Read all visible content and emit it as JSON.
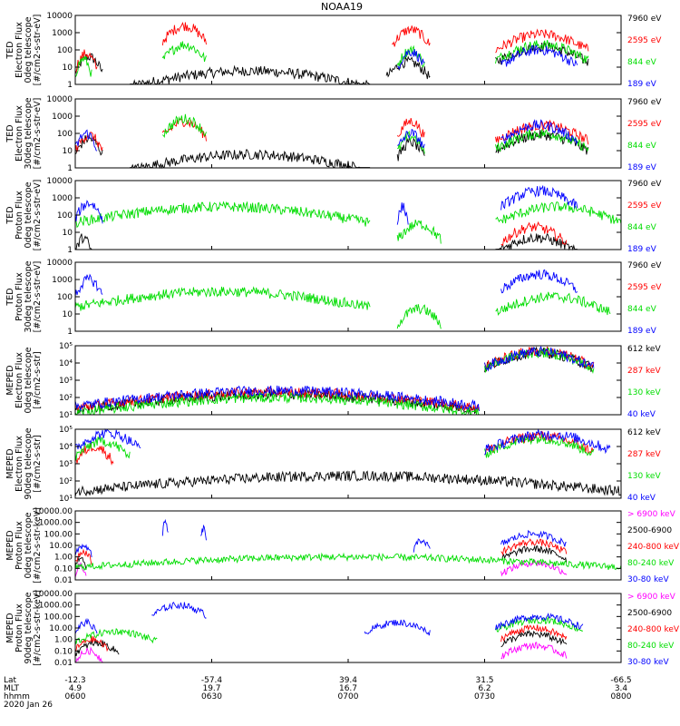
{
  "title": "NOAA19",
  "colors": {
    "black": "#000000",
    "red": "#ff0000",
    "green": "#00dd00",
    "blue": "#0000ff",
    "magenta": "#ff00ff"
  },
  "panels": [
    {
      "ylabel": [
        "TED",
        "Electron Flux",
        "0deg telescope",
        "[#/cm2-s-str-eV]"
      ],
      "yticks": [
        "10000",
        "1000",
        "100",
        "10",
        "1"
      ],
      "legend": [
        {
          "text": "7960 eV",
          "color": "black"
        },
        {
          "text": "2595 eV",
          "color": "red"
        },
        {
          "text": "844 eV",
          "color": "green"
        },
        {
          "text": "189 eV",
          "color": "blue"
        }
      ]
    },
    {
      "ylabel": [
        "TED",
        "Electron Flux",
        "30deg telescope",
        "[#/cm2-s-str-eV]"
      ],
      "yticks": [
        "10000",
        "1000",
        "100",
        "10",
        "1"
      ],
      "legend": [
        {
          "text": "7960 eV",
          "color": "black"
        },
        {
          "text": "2595 eV",
          "color": "red"
        },
        {
          "text": "844 eV",
          "color": "green"
        },
        {
          "text": "189 eV",
          "color": "blue"
        }
      ]
    },
    {
      "ylabel": [
        "TED",
        "Proton Flux",
        "0deg telescope",
        "[#/cm2-s-str-eV]"
      ],
      "yticks": [
        "10000",
        "1000",
        "100",
        "10",
        "1"
      ],
      "legend": [
        {
          "text": "7960 eV",
          "color": "black"
        },
        {
          "text": "2595 eV",
          "color": "red"
        },
        {
          "text": "844 eV",
          "color": "green"
        },
        {
          "text": "189 eV",
          "color": "blue"
        }
      ]
    },
    {
      "ylabel": [
        "TED",
        "Proton Flux",
        "30deg telescope",
        "[#/cm2-s-str-eV]"
      ],
      "yticks": [
        "10000",
        "1000",
        "100",
        "10",
        "1"
      ],
      "legend": [
        {
          "text": "7960 eV",
          "color": "black"
        },
        {
          "text": "2595 eV",
          "color": "red"
        },
        {
          "text": "844 eV",
          "color": "green"
        },
        {
          "text": "189 eV",
          "color": "blue"
        }
      ]
    },
    {
      "ylabel": [
        "MEPED",
        "Electron Flux",
        "0deg telescope",
        "[#/cm2-s-str]"
      ],
      "yticks": [
        "10⁵",
        "10⁴",
        "10³",
        "10²",
        "10¹"
      ],
      "legend": [
        {
          "text": "612 keV",
          "color": "black"
        },
        {
          "text": "287 keV",
          "color": "red"
        },
        {
          "text": "130 keV",
          "color": "green"
        },
        {
          "text": "40 keV",
          "color": "blue"
        }
      ]
    },
    {
      "ylabel": [
        "MEPED",
        "Electron Flux",
        "90deg telescope",
        "[#/cm2-s-str]"
      ],
      "yticks": [
        "10⁵",
        "10⁴",
        "10³",
        "10²",
        "10¹"
      ],
      "legend": [
        {
          "text": "612 keV",
          "color": "black"
        },
        {
          "text": "287 keV",
          "color": "red"
        },
        {
          "text": "130 keV",
          "color": "green"
        },
        {
          "text": "40 keV",
          "color": "blue"
        }
      ]
    },
    {
      "ylabel": [
        "MEPED",
        "Proton Flux",
        "0deg telescope",
        "[#/cm2-s-str-keV]"
      ],
      "yticks": [
        "10000.00",
        "1000.00",
        "100.00",
        "10.00",
        "1.00",
        "0.10",
        "0.01"
      ],
      "legend": [
        {
          "text": "> 6900 keV",
          "color": "magenta"
        },
        {
          "text": "2500-6900",
          "color": "black"
        },
        {
          "text": "240-800 keV",
          "color": "red"
        },
        {
          "text": "80-240 keV",
          "color": "green"
        },
        {
          "text": "30-80 keV",
          "color": "blue"
        }
      ]
    },
    {
      "ylabel": [
        "MEPED",
        "Proton Flux",
        "90deg telescope",
        "[#/cm2-s-str-keV]"
      ],
      "yticks": [
        "10000.00",
        "1000.00",
        "100.00",
        "10.00",
        "1.00",
        "0.10",
        "0.01"
      ],
      "legend": [
        {
          "text": "> 6900 keV",
          "color": "magenta"
        },
        {
          "text": "2500-6900",
          "color": "black"
        },
        {
          "text": "240-800 keV",
          "color": "red"
        },
        {
          "text": "80-240 keV",
          "color": "green"
        },
        {
          "text": "30-80 keV",
          "color": "blue"
        }
      ]
    }
  ],
  "footer": {
    "row_labels": [
      "Lat",
      "MLT",
      "hhmm"
    ],
    "date": "2020 Jan 26",
    "columns": [
      {
        "lat": "-12.3",
        "mlt": "4.9",
        "hhmm": "0600"
      },
      {
        "lat": "-57.4",
        "mlt": "19.7",
        "hhmm": "0630"
      },
      {
        "lat": "39.4",
        "mlt": "16.7",
        "hhmm": "0700"
      },
      {
        "lat": "31.5",
        "mlt": "6.2",
        "hhmm": "0730"
      },
      {
        "lat": "-66.5",
        "mlt": "3.4",
        "hhmm": "0800"
      }
    ]
  },
  "chart_data": {
    "type": "line",
    "title": "NOAA19",
    "x": [
      "0600",
      "0630",
      "0700",
      "0730",
      "0800"
    ],
    "xlim": [
      "0600",
      "0800"
    ],
    "panels": [
      {
        "ylabel": "TED Electron Flux 0deg telescope [#/cm2-s-str-eV]",
        "yscale": "log",
        "ylim": [
          1,
          10000
        ],
        "series": [
          {
            "name": "7960 eV",
            "color": "black",
            "segments": [
              [
                0.0,
                0.05,
                40
              ],
              [
                0.1,
                0.54,
                6
              ],
              [
                0.57,
                0.65,
                20
              ],
              [
                0.77,
                0.94,
                150
              ]
            ]
          },
          {
            "name": "2595 eV",
            "color": "red",
            "segments": [
              [
                0.0,
                0.04,
                60
              ],
              [
                0.16,
                0.24,
                2500
              ],
              [
                0.58,
                0.65,
                1500
              ],
              [
                0.77,
                0.94,
                800
              ]
            ]
          },
          {
            "name": "844 eV",
            "color": "green",
            "segments": [
              [
                0.0,
                0.03,
                30
              ],
              [
                0.16,
                0.24,
                200
              ],
              [
                0.59,
                0.64,
                100
              ],
              [
                0.77,
                0.94,
                200
              ]
            ]
          },
          {
            "name": "189 eV",
            "color": "blue",
            "segments": [
              [
                0.59,
                0.64,
                80
              ],
              [
                0.78,
                0.92,
                100
              ]
            ]
          }
        ]
      },
      {
        "ylabel": "TED Electron Flux 30deg telescope [#/cm2-s-str-eV]",
        "yscale": "log",
        "ylim": [
          1,
          10000
        ],
        "series": [
          {
            "name": "7960 eV",
            "color": "black",
            "segments": [
              [
                0.0,
                0.05,
                50
              ],
              [
                0.1,
                0.54,
                6
              ],
              [
                0.59,
                0.64,
                30
              ],
              [
                0.77,
                0.94,
                80
              ]
            ]
          },
          {
            "name": "2595 eV",
            "color": "red",
            "segments": [
              [
                0.0,
                0.05,
                80
              ],
              [
                0.16,
                0.24,
                500
              ],
              [
                0.59,
                0.64,
                500
              ],
              [
                0.77,
                0.94,
                300
              ]
            ]
          },
          {
            "name": "844 eV",
            "color": "green",
            "segments": [
              [
                0.16,
                0.24,
                700
              ],
              [
                0.59,
                0.64,
                70
              ],
              [
                0.77,
                0.94,
                100
              ]
            ]
          },
          {
            "name": "189 eV",
            "color": "blue",
            "segments": [
              [
                0.0,
                0.04,
                100
              ],
              [
                0.59,
                0.64,
                100
              ],
              [
                0.78,
                0.92,
                300
              ]
            ]
          }
        ]
      },
      {
        "ylabel": "TED Proton Flux 0deg telescope [#/cm2-s-str-eV]",
        "yscale": "log",
        "ylim": [
          1,
          10000
        ],
        "series": [
          {
            "name": "7960 eV",
            "color": "black",
            "segments": [
              [
                0.0,
                0.03,
                5
              ],
              [
                0.77,
                0.92,
                5
              ]
            ]
          },
          {
            "name": "2595 eV",
            "color": "red",
            "segments": [
              [
                0.78,
                0.9,
                20
              ]
            ]
          },
          {
            "name": "844 eV",
            "color": "green",
            "segments": [
              [
                0.0,
                0.54,
                300
              ],
              [
                0.59,
                0.67,
                30
              ],
              [
                0.77,
                1.0,
                300
              ]
            ]
          },
          {
            "name": "189 eV",
            "color": "blue",
            "segments": [
              [
                0.0,
                0.05,
                500
              ],
              [
                0.59,
                0.61,
                300
              ],
              [
                0.78,
                0.92,
                2500
              ]
            ]
          }
        ]
      },
      {
        "ylabel": "TED Proton Flux 30deg telescope [#/cm2-s-str-eV]",
        "yscale": "log",
        "ylim": [
          1,
          10000
        ],
        "series": [
          {
            "name": "844 eV",
            "color": "green",
            "segments": [
              [
                0.0,
                0.54,
                200
              ],
              [
                0.59,
                0.67,
                20
              ],
              [
                0.77,
                0.98,
                100
              ]
            ]
          },
          {
            "name": "189 eV",
            "color": "blue",
            "segments": [
              [
                0.0,
                0.05,
                1000
              ],
              [
                0.78,
                0.92,
                2000
              ]
            ]
          }
        ]
      },
      {
        "ylabel": "MEPED Electron Flux 0deg telescope [#/cm2-s-str]",
        "yscale": "log",
        "ylim": [
          10,
          100000
        ],
        "series": [
          {
            "name": "612 keV",
            "color": "black",
            "segments": [
              [
                0.0,
                0.74,
                150
              ],
              [
                0.75,
                0.95,
                40000
              ]
            ]
          },
          {
            "name": "287 keV",
            "color": "red",
            "segments": [
              [
                0.0,
                0.74,
                200
              ],
              [
                0.75,
                0.95,
                50000
              ]
            ]
          },
          {
            "name": "130 keV",
            "color": "green",
            "segments": [
              [
                0.0,
                0.74,
                100
              ],
              [
                0.75,
                0.95,
                40000
              ]
            ]
          },
          {
            "name": "40 keV",
            "color": "blue",
            "segments": [
              [
                0.0,
                0.74,
                250
              ],
              [
                0.75,
                0.95,
                45000
              ]
            ]
          }
        ]
      },
      {
        "ylabel": "MEPED Electron Flux 90deg telescope [#/cm2-s-str]",
        "yscale": "log",
        "ylim": [
          10,
          100000
        ],
        "series": [
          {
            "name": "612 keV",
            "color": "black",
            "segments": [
              [
                0.0,
                1.0,
                200
              ]
            ]
          },
          {
            "name": "287 keV",
            "color": "red",
            "segments": [
              [
                0.0,
                0.07,
                10000
              ],
              [
                0.75,
                0.95,
                40000
              ]
            ]
          },
          {
            "name": "130 keV",
            "color": "green",
            "segments": [
              [
                0.0,
                0.1,
                20000
              ],
              [
                0.75,
                0.95,
                30000
              ]
            ]
          },
          {
            "name": "40 keV",
            "color": "blue",
            "segments": [
              [
                0.0,
                0.12,
                60000
              ],
              [
                0.75,
                0.98,
                50000
              ]
            ]
          }
        ]
      },
      {
        "ylabel": "MEPED Proton Flux 0deg telescope [#/cm2-s-str-keV]",
        "yscale": "log",
        "ylim": [
          0.01,
          10000
        ],
        "series": [
          {
            "name": "> 6900 keV",
            "color": "magenta",
            "segments": [
              [
                0.0,
                0.02,
                0.2
              ],
              [
                0.78,
                0.9,
                0.3
              ]
            ]
          },
          {
            "name": "2500-6900",
            "color": "black",
            "segments": [
              [
                0.0,
                0.02,
                1
              ],
              [
                0.78,
                0.9,
                5
              ]
            ]
          },
          {
            "name": "240-800 keV",
            "color": "red",
            "segments": [
              [
                0.0,
                0.03,
                3
              ],
              [
                0.78,
                0.9,
                20
              ]
            ]
          },
          {
            "name": "80-240 keV",
            "color": "green",
            "segments": [
              [
                0.0,
                1.0,
                1
              ]
            ]
          },
          {
            "name": "30-80 keV",
            "color": "blue",
            "segments": [
              [
                0.0,
                0.03,
                10
              ],
              [
                0.16,
                0.17,
                1000
              ],
              [
                0.23,
                0.24,
                300
              ],
              [
                0.62,
                0.65,
                30
              ],
              [
                0.78,
                0.9,
                100
              ]
            ]
          }
        ]
      },
      {
        "ylabel": "MEPED Proton Flux 90deg telescope [#/cm2-s-str-keV]",
        "yscale": "log",
        "ylim": [
          0.01,
          10000
        ],
        "series": [
          {
            "name": "> 6900 keV",
            "color": "magenta",
            "segments": [
              [
                0.0,
                0.05,
                0.1
              ],
              [
                0.78,
                0.9,
                0.3
              ]
            ]
          },
          {
            "name": "2500-6900",
            "color": "black",
            "segments": [
              [
                0.0,
                0.08,
                0.5
              ],
              [
                0.78,
                0.9,
                3
              ]
            ]
          },
          {
            "name": "240-800 keV",
            "color": "red",
            "segments": [
              [
                0.0,
                0.06,
                1
              ],
              [
                0.78,
                0.9,
                10
              ]
            ]
          },
          {
            "name": "80-240 keV",
            "color": "green",
            "segments": [
              [
                0.0,
                0.15,
                5
              ],
              [
                0.77,
                0.93,
                50
              ]
            ]
          },
          {
            "name": "30-80 keV",
            "color": "blue",
            "segments": [
              [
                0.0,
                0.04,
                30
              ],
              [
                0.14,
                0.24,
                1000
              ],
              [
                0.53,
                0.65,
                30
              ],
              [
                0.77,
                0.93,
                100
              ]
            ]
          }
        ]
      }
    ]
  }
}
